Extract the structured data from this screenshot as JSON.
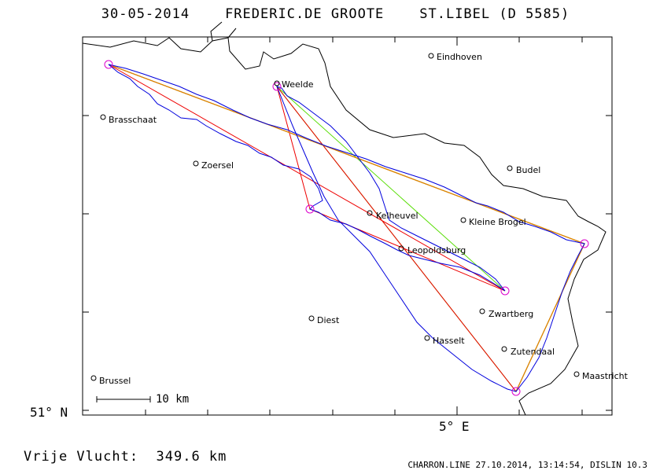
{
  "header": {
    "date": "30-05-2014",
    "pilot": "FREDERIC.DE GROOTE",
    "glider": "ST.LIBEL (D 5585)"
  },
  "axes": {
    "lat_label": "51° N",
    "lon_label": "5° E"
  },
  "cities": [
    {
      "name": "Eindhoven"
    },
    {
      "name": "Weelde"
    },
    {
      "name": "Brasschaat"
    },
    {
      "name": "Zoersel"
    },
    {
      "name": "Budel"
    },
    {
      "name": "Kelheuvel"
    },
    {
      "name": "Kleine Brogel"
    },
    {
      "name": "Leopoldsburg"
    },
    {
      "name": "Zwartberg"
    },
    {
      "name": "Diest"
    },
    {
      "name": "Hasselt"
    },
    {
      "name": "Zutendaal"
    },
    {
      "name": "Maastricht"
    },
    {
      "name": "Brussel"
    }
  ],
  "scale": {
    "label": "10 km"
  },
  "footer": {
    "distance": "Vrije Vlucht:  349.6 km",
    "credit": "CHARRON.LINE 27.10.2014, 13:14:54, DISLIN 10.3"
  },
  "colors": {
    "track": "#0000dd",
    "task_red": "#ee0000",
    "task_green": "#55dd00",
    "task_orange": "#dd8800",
    "turnpoint": "#dd00cc",
    "border": "#000000"
  }
}
